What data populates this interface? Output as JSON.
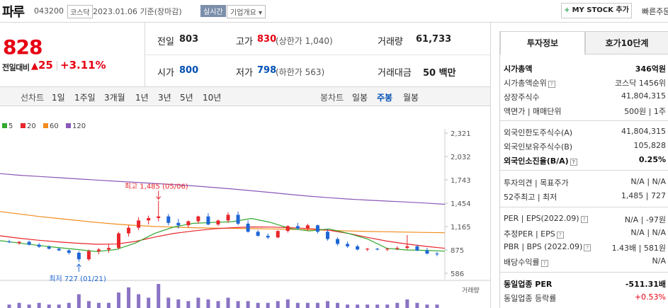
{
  "header": {
    "name": "파루",
    "code": "043200",
    "market": "코스닥",
    "date": "2023.01.06",
    "basis": "기준(장마감)",
    "realtime": "실시간",
    "overview": "기업개요",
    "mystock": "MY STOCK 추가",
    "fast": "빠른주문"
  },
  "price": {
    "current": "828",
    "change_label": "전일대비",
    "change": "25",
    "change_pct": "+3.11%"
  },
  "quotes": {
    "prev_label": "전일",
    "prev": "803",
    "high_label": "고가",
    "high": "830",
    "high_sub": "(상한가 1,040)",
    "volume_label": "거래량",
    "volume": "61,733",
    "open_label": "시가",
    "open": "800",
    "low_label": "저가",
    "low": "798",
    "low_sub": "(하한가 563)",
    "amount_label": "거래대금",
    "amount": "50",
    "amount_unit": "백만"
  },
  "tabs": {
    "line_label": "선차트",
    "line": [
      "1일",
      "1주일",
      "3개월",
      "1년",
      "3년",
      "5년",
      "10년"
    ],
    "candle_label": "봉차트",
    "candle": [
      "일봉",
      "주봉",
      "월봉"
    ],
    "active_candle": "주봉"
  },
  "chart_data": {
    "type": "candlestick",
    "legend": [
      {
        "name": "5",
        "color": "#31a82f"
      },
      {
        "name": "20",
        "color": "#e8262b"
      },
      {
        "name": "60",
        "color": "#f28c1d"
      },
      {
        "name": "120",
        "color": "#8a58b8"
      }
    ],
    "y_ticks": [
      "2,321",
      "2,032",
      "1,743",
      "1,454",
      "1,165",
      "875",
      "586"
    ],
    "y_min": 586,
    "y_max": 2321,
    "high_note": "최고 1,485 (05/06)",
    "low_note": "최저 727 (01/21)",
    "volume_label": "거래량",
    "ma120": [
      1820,
      1800,
      1785,
      1770,
      1755,
      1740,
      1725,
      1712,
      1698,
      1684,
      1668,
      1650,
      1630,
      1608,
      1586,
      1562,
      1540,
      1522,
      1505,
      1492,
      1480,
      1468,
      1455,
      1440
    ],
    "ma60": [
      1350,
      1320,
      1290,
      1265,
      1240,
      1215,
      1195,
      1178,
      1165,
      1158,
      1150,
      1146,
      1142,
      1139,
      1135,
      1130,
      1125,
      1118,
      1110,
      1104,
      1100,
      1096,
      1092,
      1088
    ],
    "ma20": [
      1050,
      1020,
      995,
      975,
      958,
      945,
      948,
      980,
      1035,
      1080,
      1110,
      1135,
      1150,
      1160,
      1158,
      1150,
      1140,
      1120,
      1080,
      1030,
      985,
      950,
      920,
      895
    ],
    "ma5": [
      990,
      960,
      930,
      905,
      880,
      855,
      880,
      960,
      1080,
      1160,
      1205,
      1215,
      1225,
      1265,
      1215,
      1140,
      1110,
      1135,
      1080,
      1010,
      895,
      875,
      870,
      860
    ],
    "candles": [
      [
        980,
        1000,
        960,
        970
      ],
      [
        960,
        985,
        940,
        975
      ],
      [
        975,
        990,
        930,
        940
      ],
      [
        940,
        960,
        900,
        915
      ],
      [
        915,
        930,
        880,
        890
      ],
      [
        890,
        900,
        860,
        870
      ],
      [
        870,
        880,
        820,
        840
      ],
      [
        840,
        860,
        727,
        760
      ],
      [
        760,
        880,
        740,
        860
      ],
      [
        860,
        900,
        820,
        880
      ],
      [
        880,
        940,
        840,
        900
      ],
      [
        900,
        1100,
        880,
        1080
      ],
      [
        1080,
        1180,
        1040,
        1150
      ],
      [
        1150,
        1280,
        1120,
        1240
      ],
      [
        1240,
        1300,
        1190,
        1270
      ],
      [
        1270,
        1485,
        1230,
        1290
      ],
      [
        1290,
        1320,
        1180,
        1210
      ],
      [
        1210,
        1260,
        1140,
        1180
      ],
      [
        1180,
        1240,
        1150,
        1230
      ],
      [
        1230,
        1300,
        1200,
        1290
      ],
      [
        1290,
        1330,
        1180,
        1190
      ],
      [
        1190,
        1250,
        1170,
        1240
      ],
      [
        1240,
        1340,
        1210,
        1310
      ],
      [
        1310,
        1350,
        1180,
        1200
      ],
      [
        1200,
        1240,
        1090,
        1100
      ],
      [
        1100,
        1120,
        1040,
        1050
      ],
      [
        1050,
        1080,
        1010,
        1030
      ],
      [
        1030,
        1120,
        1020,
        1110
      ],
      [
        1110,
        1180,
        1090,
        1170
      ],
      [
        1170,
        1210,
        1130,
        1140
      ],
      [
        1140,
        1200,
        1110,
        1180
      ],
      [
        1180,
        1190,
        1080,
        1100
      ],
      [
        1100,
        1130,
        990,
        1010
      ],
      [
        1010,
        1030,
        930,
        950
      ],
      [
        950,
        980,
        900,
        920
      ],
      [
        920,
        940,
        870,
        880
      ],
      [
        880,
        900,
        860,
        890
      ],
      [
        890,
        900,
        870,
        880
      ],
      [
        880,
        900,
        860,
        890
      ],
      [
        890,
        920,
        870,
        900
      ],
      [
        900,
        1060,
        880,
        920
      ],
      [
        920,
        940,
        860,
        870
      ],
      [
        870,
        900,
        820,
        830
      ],
      [
        830,
        850,
        798,
        828
      ]
    ],
    "volumes": [
      2,
      3,
      2,
      3,
      2,
      2,
      3,
      8,
      4,
      3,
      3,
      9,
      12,
      8,
      6,
      14,
      6,
      5,
      4,
      6,
      5,
      4,
      6,
      4,
      4,
      3,
      3,
      4,
      5,
      3,
      3,
      3,
      4,
      3,
      2,
      2,
      2,
      2,
      2,
      3,
      5,
      3,
      2,
      2
    ]
  },
  "panel": {
    "tabs": [
      "투자정보",
      "호가10단계"
    ],
    "rows1": [
      {
        "l": "시가총액",
        "v": "346억원"
      },
      {
        "l": "시가총액순위",
        "v": "코스닥 1456위"
      },
      {
        "l": "상장주식수",
        "v": "41,804,315"
      },
      {
        "l": "액면가 | 매매단위",
        "v": "500원 | 1주"
      }
    ],
    "rows2": [
      {
        "l": "외국인한도주식수(A)",
        "v": "41,804,315"
      },
      {
        "l": "외국인보유주식수(B)",
        "v": "105,828"
      },
      {
        "l": "외국인소진율(B/A)",
        "v": "0.25%"
      }
    ],
    "rows3": [
      {
        "l": "투자의견 | 목표주가",
        "v": "N/A | N/A"
      },
      {
        "l": "52주최고 | 최저",
        "v": "1,485 | 727"
      }
    ],
    "rows4": [
      {
        "l": "PER | EPS(2022.09)",
        "v": "N/A | -97원"
      },
      {
        "l": "추정PER | EPS",
        "v": "N/A | N/A"
      },
      {
        "l": "PBR | BPS (2022.09)",
        "v": "1.43배 | 581원"
      },
      {
        "l": "배당수익률",
        "v": "N/A"
      }
    ],
    "rows5": [
      {
        "l": "동일업종 PER",
        "v": "-511.31배"
      },
      {
        "l": "동일업종 등락률",
        "v": "+0.53%"
      }
    ]
  }
}
